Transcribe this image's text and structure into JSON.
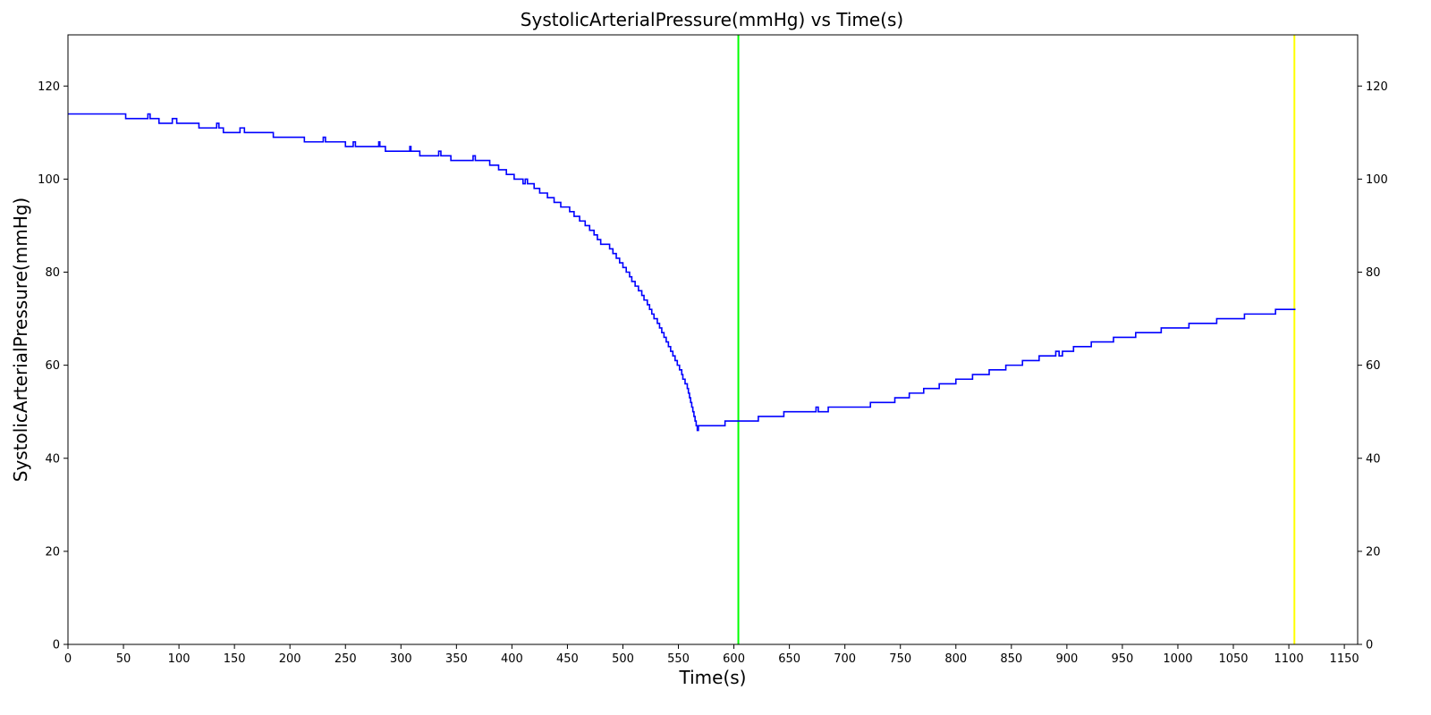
{
  "chart_data": {
    "type": "line",
    "title": "SystolicArterialPressure(mmHg) vs Time(s)",
    "xlabel": "Time(s)",
    "ylabel": "SystolicArterialPressure(mmHg)",
    "xlim": [
      0,
      1162
    ],
    "ylim": [
      0,
      131
    ],
    "xticks": [
      0,
      50,
      100,
      150,
      200,
      250,
      300,
      350,
      400,
      450,
      500,
      550,
      600,
      650,
      700,
      750,
      800,
      850,
      900,
      950,
      1000,
      1050,
      1100,
      1150
    ],
    "yticks": [
      0,
      20,
      40,
      60,
      80,
      100,
      120
    ],
    "right_axis_ticks": true,
    "grid": false,
    "series": [
      {
        "color": "#0000ff",
        "step": true,
        "x": [
          0,
          52,
          70,
          72,
          74,
          78,
          82,
          94,
          96,
          98,
          100,
          118,
          134,
          136,
          138,
          140,
          141,
          155,
          157,
          159,
          161,
          185,
          213,
          228,
          230,
          232,
          234,
          249,
          250,
          255,
          257,
          259,
          261,
          280,
          281,
          283,
          286,
          308,
          309,
          310,
          317,
          332,
          334,
          336,
          338,
          345,
          363,
          365,
          367,
          370,
          380,
          388,
          395,
          402,
          410,
          412,
          414,
          416,
          420,
          425,
          432,
          438,
          444,
          452,
          456,
          461,
          466,
          470,
          474,
          477,
          480,
          484,
          488,
          491,
          494,
          497,
          500,
          503,
          506,
          508,
          511,
          514,
          517,
          519,
          522,
          524,
          526,
          528,
          531,
          533,
          535,
          537,
          539,
          541,
          543,
          545,
          547,
          549,
          551,
          553,
          554,
          556,
          558,
          559,
          560,
          561,
          562,
          563,
          564,
          565,
          566,
          567,
          568,
          569,
          570,
          571,
          572,
          573,
          574,
          575,
          576,
          577,
          578,
          582,
          592,
          604,
          622,
          645,
          672,
          674,
          676,
          685,
          723,
          745,
          758,
          771,
          785,
          800,
          815,
          830,
          845,
          860,
          875,
          888,
          890,
          893,
          896,
          906,
          922,
          942,
          962,
          985,
          1010,
          1035,
          1060,
          1088,
          1106
        ],
        "y": [
          114,
          113,
          113,
          114,
          113,
          113,
          112,
          113,
          113,
          112,
          112,
          111,
          112,
          111,
          111,
          110,
          110,
          111,
          111,
          110,
          110,
          109,
          108,
          108,
          109,
          108,
          108,
          108,
          107,
          107,
          108,
          107,
          107,
          108,
          107,
          107,
          106,
          107,
          106,
          106,
          105,
          105,
          106,
          105,
          105,
          104,
          104,
          105,
          104,
          104,
          103,
          102,
          101,
          100,
          99,
          100,
          99,
          99,
          98,
          97,
          96,
          95,
          94,
          93,
          92,
          91,
          90,
          89,
          88,
          87,
          86,
          86,
          85,
          84,
          83,
          82,
          81,
          80,
          79,
          78,
          77,
          76,
          75,
          74,
          73,
          72,
          71,
          70,
          69,
          68,
          67,
          66,
          65,
          64,
          63,
          62,
          61,
          60,
          59,
          58,
          57,
          56,
          55,
          54,
          53,
          52,
          51,
          50,
          49,
          48,
          47,
          46,
          47,
          47,
          47,
          47,
          47,
          47,
          47,
          47,
          47,
          47,
          47,
          47,
          48,
          48,
          49,
          50,
          50,
          51,
          50,
          51,
          52,
          53,
          54,
          55,
          56,
          57,
          58,
          59,
          60,
          61,
          62,
          62,
          63,
          62,
          63,
          64,
          65,
          66,
          67,
          68,
          69,
          70,
          71,
          72,
          72
        ]
      }
    ],
    "vlines": [
      {
        "x": 604,
        "color": "#00ff00"
      },
      {
        "x": 1105,
        "color": "#ffff00"
      }
    ]
  }
}
